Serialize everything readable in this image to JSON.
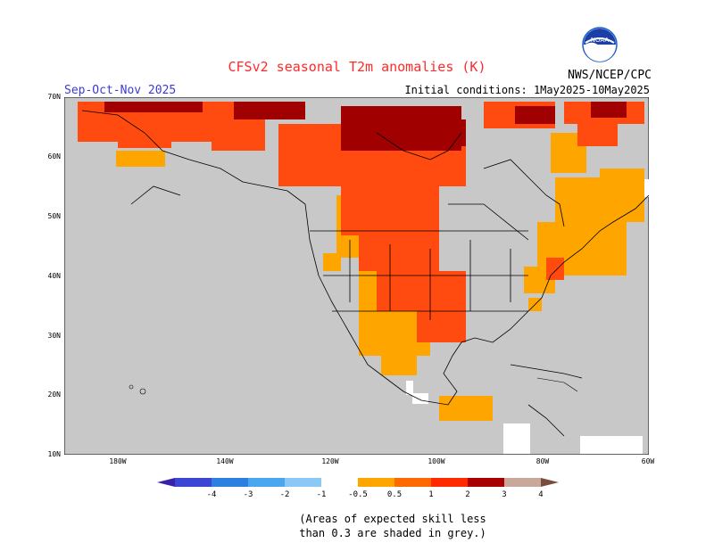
{
  "header": {
    "title": "CFSv2 seasonal T2m anomalies (K)",
    "period": "Sep-Oct-Nov 2025",
    "initial_conditions": "Initial conditions: 1May2025-10May2025",
    "agency": "NWS/NCEP/CPC",
    "logo_text": "NOAA"
  },
  "map": {
    "lat_labels": [
      "70N",
      "60N",
      "50N",
      "40N",
      "30N",
      "20N",
      "10N"
    ],
    "lon_labels": [
      "180W",
      "140W",
      "120W",
      "100W",
      "80W",
      "60W"
    ],
    "background_color": "#c8c8c8",
    "land_outline_color": "#000000"
  },
  "colorbar": {
    "labels": [
      "-4",
      "-3",
      "-2",
      "-1",
      "-0.5",
      "0.5",
      "1",
      "2",
      "3",
      "4"
    ],
    "colors": [
      "#3a1fa8",
      "#3b46d4",
      "#2f7fe0",
      "#4aa6ee",
      "#8cc8f5",
      "#ffffff",
      "#ffa500",
      "#ff6a00",
      "#ff2a00",
      "#a80000",
      "#c8a89a",
      "#7a4a3a"
    ]
  },
  "note": {
    "line1": "(Areas of expected skill less",
    "line2": "than 0.3 are shaded in grey.)"
  }
}
